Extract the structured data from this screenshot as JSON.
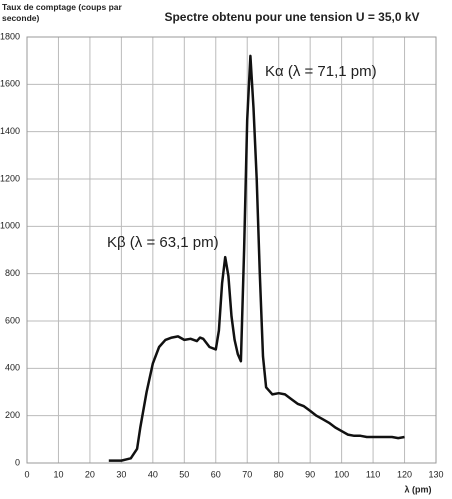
{
  "chart_data": {
    "type": "line",
    "title": "Spectre obtenu pour une tension U = 35,0 kV",
    "y_label": "Taux de comptage (coups par seconde)",
    "x_label": "λ (pm)",
    "annotations": [
      "Kα  (λ = 71,1 pm)",
      "Kβ  (λ = 63,1 pm)"
    ],
    "color": "#111111",
    "grid": true,
    "xlim": [
      0,
      130
    ],
    "xticks": [
      0,
      10,
      20,
      30,
      40,
      50,
      60,
      70,
      80,
      90,
      100,
      110,
      120,
      130
    ],
    "ylim": [
      0,
      1800
    ],
    "yticks": [
      0,
      200,
      400,
      600,
      800,
      1000,
      1200,
      1400,
      1600,
      1800
    ],
    "x": [
      26,
      30,
      33,
      35,
      36,
      38,
      40,
      42,
      44,
      46,
      48,
      50,
      52,
      54,
      55,
      56,
      58,
      60,
      61,
      62,
      63,
      64,
      65,
      66,
      67,
      68,
      69,
      70,
      71,
      72,
      73,
      74,
      75,
      76,
      78,
      80,
      82,
      84,
      86,
      88,
      90,
      92,
      94,
      96,
      98,
      100,
      102,
      104,
      106,
      108,
      110,
      112,
      114,
      116,
      118,
      120
    ],
    "values": [
      10,
      10,
      20,
      60,
      150,
      300,
      420,
      490,
      520,
      530,
      535,
      520,
      525,
      515,
      530,
      525,
      490,
      480,
      560,
      760,
      870,
      790,
      620,
      520,
      460,
      430,
      900,
      1450,
      1720,
      1500,
      1200,
      800,
      450,
      320,
      290,
      295,
      290,
      270,
      250,
      240,
      220,
      200,
      185,
      170,
      150,
      135,
      120,
      115,
      115,
      110,
      110,
      110,
      110,
      110,
      105,
      110
    ]
  }
}
